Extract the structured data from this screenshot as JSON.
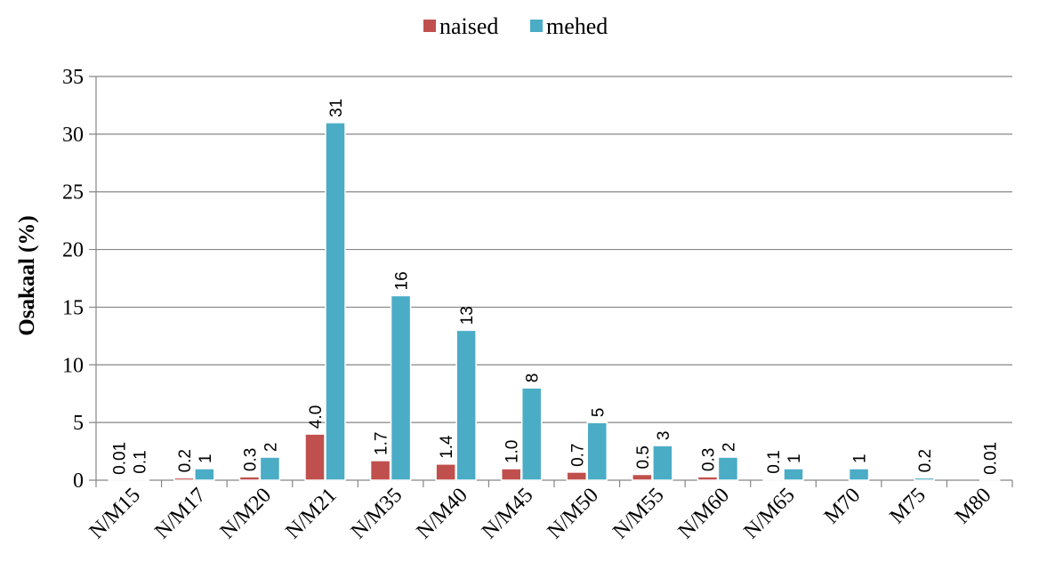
{
  "chart_data": {
    "type": "bar",
    "categories": [
      "N/M15",
      "N/M17",
      "N/M20",
      "N/M21",
      "N/M35",
      "N/M40",
      "N/M45",
      "N/M50",
      "N/M55",
      "N/M60",
      "N/M65",
      "M70",
      "M75",
      "M80"
    ],
    "series": [
      {
        "name": "naised",
        "color": "#c0504d",
        "values": [
          0.01,
          0.2,
          0.3,
          4.0,
          1.7,
          1.4,
          1.0,
          0.7,
          0.5,
          0.3,
          0.1,
          null,
          null,
          null
        ],
        "labels": [
          "0.01",
          "0.2",
          "0.3",
          "4.0",
          "1.7",
          "1.4",
          "1.0",
          "0.7",
          "0.5",
          "0.3",
          "0.1",
          "",
          "",
          ""
        ]
      },
      {
        "name": "mehed",
        "color": "#4bacc6",
        "values": [
          0.1,
          1,
          2,
          31,
          16,
          13,
          8,
          5,
          3,
          2,
          1,
          1,
          0.2,
          0.01
        ],
        "labels": [
          "0.1",
          "1",
          "2",
          "31",
          "16",
          "13",
          "8",
          "5",
          "3",
          "2",
          "1",
          "1",
          "0.2",
          "0.01"
        ]
      }
    ],
    "ylabel": "Osakaal (%)",
    "xlabel": "",
    "ylim": [
      0,
      35
    ],
    "yticks": [
      "0",
      "5",
      "10",
      "15",
      "20",
      "25",
      "30",
      "35"
    ],
    "grid": true,
    "legend": "top-center"
  }
}
